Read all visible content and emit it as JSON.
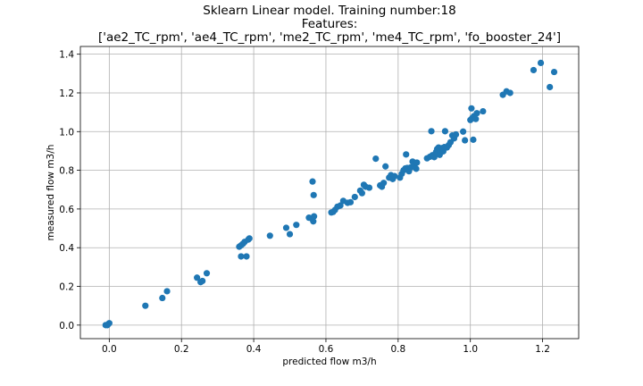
{
  "chart_data": {
    "type": "scatter",
    "title_lines": [
      "Sklearn Linear model. Training number:18",
      "Features:",
      "['ae2_TC_rpm', 'ae4_TC_rpm', 'me2_TC_rpm', 'me4_TC_rpm', 'fo_booster_24']"
    ],
    "xlabel": "predicted flow m3/h",
    "ylabel": "measured flow m3/h",
    "xlim": [
      -0.08,
      1.3
    ],
    "ylim": [
      -0.07,
      1.44
    ],
    "xticks": [
      0.0,
      0.2,
      0.4,
      0.6,
      0.8,
      1.0,
      1.2
    ],
    "xtick_labels": [
      "0.0",
      "0.2",
      "0.4",
      "0.6",
      "0.8",
      "1.0",
      "1.2"
    ],
    "yticks": [
      0.0,
      0.2,
      0.4,
      0.6,
      0.8,
      1.0,
      1.2,
      1.4
    ],
    "ytick_labels": [
      "0.0",
      "0.2",
      "0.4",
      "0.6",
      "0.8",
      "1.0",
      "1.2",
      "1.4"
    ],
    "grid": true,
    "marker_color": "#1f77b4",
    "points": [
      [
        -0.01,
        0.0
      ],
      [
        0.0,
        0.01
      ],
      [
        -0.005,
        0.0
      ],
      [
        0.1,
        0.1
      ],
      [
        0.147,
        0.14
      ],
      [
        0.16,
        0.175
      ],
      [
        0.243,
        0.245
      ],
      [
        0.253,
        0.222
      ],
      [
        0.258,
        0.228
      ],
      [
        0.27,
        0.268
      ],
      [
        0.36,
        0.405
      ],
      [
        0.365,
        0.412
      ],
      [
        0.37,
        0.42
      ],
      [
        0.375,
        0.43
      ],
      [
        0.388,
        0.448
      ],
      [
        0.385,
        0.442
      ],
      [
        0.365,
        0.355
      ],
      [
        0.38,
        0.355
      ],
      [
        0.445,
        0.462
      ],
      [
        0.49,
        0.503
      ],
      [
        0.5,
        0.47
      ],
      [
        0.518,
        0.518
      ],
      [
        0.553,
        0.555
      ],
      [
        0.56,
        0.552
      ],
      [
        0.565,
        0.536
      ],
      [
        0.567,
        0.562
      ],
      [
        0.563,
        0.742
      ],
      [
        0.566,
        0.672
      ],
      [
        0.615,
        0.582
      ],
      [
        0.62,
        0.585
      ],
      [
        0.625,
        0.595
      ],
      [
        0.632,
        0.612
      ],
      [
        0.64,
        0.618
      ],
      [
        0.648,
        0.642
      ],
      [
        0.66,
        0.632
      ],
      [
        0.668,
        0.635
      ],
      [
        0.68,
        0.662
      ],
      [
        0.695,
        0.695
      ],
      [
        0.7,
        0.682
      ],
      [
        0.705,
        0.725
      ],
      [
        0.71,
        0.715
      ],
      [
        0.72,
        0.71
      ],
      [
        0.738,
        0.86
      ],
      [
        0.75,
        0.722
      ],
      [
        0.755,
        0.715
      ],
      [
        0.76,
        0.735
      ],
      [
        0.765,
        0.82
      ],
      [
        0.775,
        0.762
      ],
      [
        0.78,
        0.775
      ],
      [
        0.785,
        0.755
      ],
      [
        0.79,
        0.77
      ],
      [
        0.805,
        0.762
      ],
      [
        0.81,
        0.782
      ],
      [
        0.815,
        0.8
      ],
      [
        0.82,
        0.81
      ],
      [
        0.822,
        0.882
      ],
      [
        0.825,
        0.812
      ],
      [
        0.83,
        0.795
      ],
      [
        0.835,
        0.815
      ],
      [
        0.84,
        0.845
      ],
      [
        0.845,
        0.82
      ],
      [
        0.85,
        0.808
      ],
      [
        0.852,
        0.84
      ],
      [
        0.88,
        0.862
      ],
      [
        0.888,
        0.87
      ],
      [
        0.892,
        1.002
      ],
      [
        0.895,
        0.878
      ],
      [
        0.9,
        0.868
      ],
      [
        0.905,
        0.895
      ],
      [
        0.908,
        0.91
      ],
      [
        0.912,
        0.918
      ],
      [
        0.915,
        0.88
      ],
      [
        0.918,
        0.9
      ],
      [
        0.922,
        0.915
      ],
      [
        0.925,
        0.898
      ],
      [
        0.928,
        0.92
      ],
      [
        0.93,
        1.002
      ],
      [
        0.935,
        0.918
      ],
      [
        0.94,
        0.93
      ],
      [
        0.945,
        0.945
      ],
      [
        0.95,
        0.98
      ],
      [
        0.955,
        0.965
      ],
      [
        0.96,
        0.985
      ],
      [
        0.98,
        1.0
      ],
      [
        0.985,
        0.955
      ],
      [
        1.0,
        1.06
      ],
      [
        1.003,
        1.12
      ],
      [
        1.005,
        1.07
      ],
      [
        1.008,
        0.958
      ],
      [
        1.01,
        1.08
      ],
      [
        1.015,
        1.065
      ],
      [
        1.018,
        1.095
      ],
      [
        1.035,
        1.105
      ],
      [
        1.09,
        1.19
      ],
      [
        1.1,
        1.208
      ],
      [
        1.11,
        1.2
      ],
      [
        1.175,
        1.318
      ],
      [
        1.195,
        1.355
      ],
      [
        1.22,
        1.23
      ],
      [
        1.232,
        1.308
      ]
    ]
  }
}
